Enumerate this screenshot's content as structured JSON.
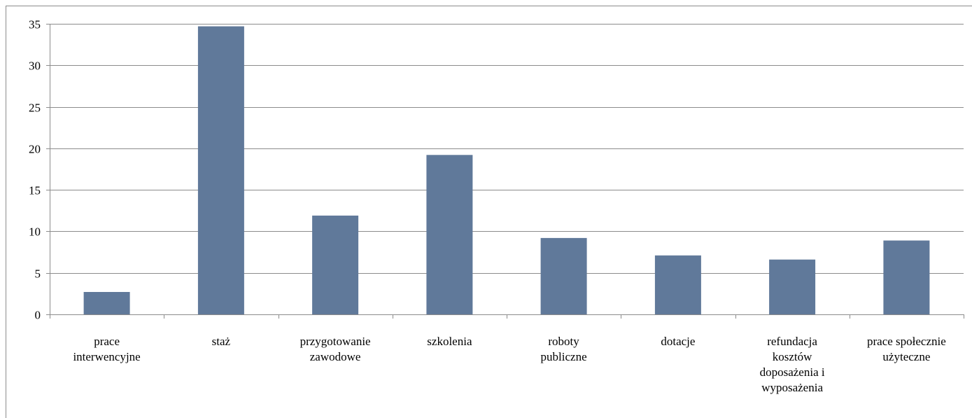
{
  "chart_data": {
    "type": "bar",
    "categories": [
      [
        "prace",
        "interwencyjne"
      ],
      [
        "staż"
      ],
      [
        "przygotowanie",
        "zawodowe"
      ],
      [
        "szkolenia"
      ],
      [
        "roboty",
        "publiczne"
      ],
      [
        "dotacje"
      ],
      [
        "refundacja",
        "kosztów",
        "doposażenia i",
        "wyposażenia"
      ],
      [
        "prace społecznie",
        "użyteczne"
      ]
    ],
    "values": [
      2.7,
      34.7,
      11.9,
      19.2,
      9.2,
      7.1,
      6.6,
      8.9
    ],
    "ylim": [
      0,
      35
    ],
    "yticks": [
      "0",
      "5",
      "10",
      "15",
      "20",
      "25",
      "30",
      "35"
    ],
    "grid": true,
    "bar_color": "#60799a",
    "grid_color": "#8c8c8c"
  }
}
